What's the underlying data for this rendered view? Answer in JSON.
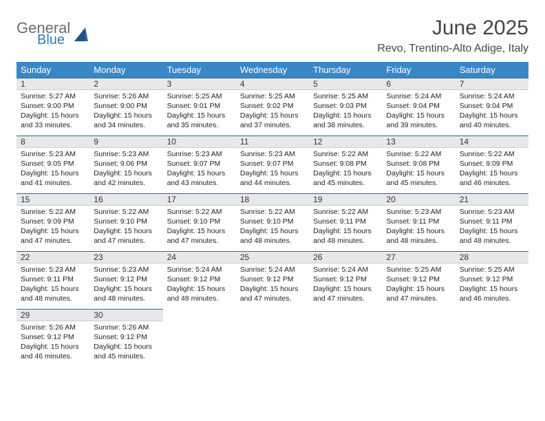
{
  "brand": {
    "name1": "General",
    "name2": "Blue",
    "color": "#2e78bf",
    "color2": "#666a70"
  },
  "header": {
    "title": "June 2025",
    "location": "Revo, Trentino-Alto Adige, Italy"
  },
  "style": {
    "header_bg": "#3a87c8",
    "daynum_bg": "#e8e8e8",
    "rule_color": "#2a68a0",
    "body_font_size": 10.5,
    "label_font_size": 13
  },
  "weekdays": [
    "Sunday",
    "Monday",
    "Tuesday",
    "Wednesday",
    "Thursday",
    "Friday",
    "Saturday"
  ],
  "days": [
    {
      "n": 1,
      "sunrise": "5:27 AM",
      "sunset": "9:00 PM",
      "daylight": "15 hours and 33 minutes."
    },
    {
      "n": 2,
      "sunrise": "5:26 AM",
      "sunset": "9:00 PM",
      "daylight": "15 hours and 34 minutes."
    },
    {
      "n": 3,
      "sunrise": "5:25 AM",
      "sunset": "9:01 PM",
      "daylight": "15 hours and 35 minutes."
    },
    {
      "n": 4,
      "sunrise": "5:25 AM",
      "sunset": "9:02 PM",
      "daylight": "15 hours and 37 minutes."
    },
    {
      "n": 5,
      "sunrise": "5:25 AM",
      "sunset": "9:03 PM",
      "daylight": "15 hours and 38 minutes."
    },
    {
      "n": 6,
      "sunrise": "5:24 AM",
      "sunset": "9:04 PM",
      "daylight": "15 hours and 39 minutes."
    },
    {
      "n": 7,
      "sunrise": "5:24 AM",
      "sunset": "9:04 PM",
      "daylight": "15 hours and 40 minutes."
    },
    {
      "n": 8,
      "sunrise": "5:23 AM",
      "sunset": "9:05 PM",
      "daylight": "15 hours and 41 minutes."
    },
    {
      "n": 9,
      "sunrise": "5:23 AM",
      "sunset": "9:06 PM",
      "daylight": "15 hours and 42 minutes."
    },
    {
      "n": 10,
      "sunrise": "5:23 AM",
      "sunset": "9:07 PM",
      "daylight": "15 hours and 43 minutes."
    },
    {
      "n": 11,
      "sunrise": "5:23 AM",
      "sunset": "9:07 PM",
      "daylight": "15 hours and 44 minutes."
    },
    {
      "n": 12,
      "sunrise": "5:22 AM",
      "sunset": "9:08 PM",
      "daylight": "15 hours and 45 minutes."
    },
    {
      "n": 13,
      "sunrise": "5:22 AM",
      "sunset": "9:08 PM",
      "daylight": "15 hours and 45 minutes."
    },
    {
      "n": 14,
      "sunrise": "5:22 AM",
      "sunset": "9:09 PM",
      "daylight": "15 hours and 46 minutes."
    },
    {
      "n": 15,
      "sunrise": "5:22 AM",
      "sunset": "9:09 PM",
      "daylight": "15 hours and 47 minutes."
    },
    {
      "n": 16,
      "sunrise": "5:22 AM",
      "sunset": "9:10 PM",
      "daylight": "15 hours and 47 minutes."
    },
    {
      "n": 17,
      "sunrise": "5:22 AM",
      "sunset": "9:10 PM",
      "daylight": "15 hours and 47 minutes."
    },
    {
      "n": 18,
      "sunrise": "5:22 AM",
      "sunset": "9:10 PM",
      "daylight": "15 hours and 48 minutes."
    },
    {
      "n": 19,
      "sunrise": "5:22 AM",
      "sunset": "9:11 PM",
      "daylight": "15 hours and 48 minutes."
    },
    {
      "n": 20,
      "sunrise": "5:23 AM",
      "sunset": "9:11 PM",
      "daylight": "15 hours and 48 minutes."
    },
    {
      "n": 21,
      "sunrise": "5:23 AM",
      "sunset": "9:11 PM",
      "daylight": "15 hours and 48 minutes."
    },
    {
      "n": 22,
      "sunrise": "5:23 AM",
      "sunset": "9:11 PM",
      "daylight": "15 hours and 48 minutes."
    },
    {
      "n": 23,
      "sunrise": "5:23 AM",
      "sunset": "9:12 PM",
      "daylight": "15 hours and 48 minutes."
    },
    {
      "n": 24,
      "sunrise": "5:24 AM",
      "sunset": "9:12 PM",
      "daylight": "15 hours and 48 minutes."
    },
    {
      "n": 25,
      "sunrise": "5:24 AM",
      "sunset": "9:12 PM",
      "daylight": "15 hours and 47 minutes."
    },
    {
      "n": 26,
      "sunrise": "5:24 AM",
      "sunset": "9:12 PM",
      "daylight": "15 hours and 47 minutes."
    },
    {
      "n": 27,
      "sunrise": "5:25 AM",
      "sunset": "9:12 PM",
      "daylight": "15 hours and 47 minutes."
    },
    {
      "n": 28,
      "sunrise": "5:25 AM",
      "sunset": "9:12 PM",
      "daylight": "15 hours and 46 minutes."
    },
    {
      "n": 29,
      "sunrise": "5:26 AM",
      "sunset": "9:12 PM",
      "daylight": "15 hours and 46 minutes."
    },
    {
      "n": 30,
      "sunrise": "5:26 AM",
      "sunset": "9:12 PM",
      "daylight": "15 hours and 45 minutes."
    }
  ],
  "labels": {
    "sunrise": "Sunrise: ",
    "sunset": "Sunset: ",
    "daylight": "Daylight: "
  },
  "layout": {
    "start_weekday": 0,
    "rows": 5,
    "cols": 7
  }
}
